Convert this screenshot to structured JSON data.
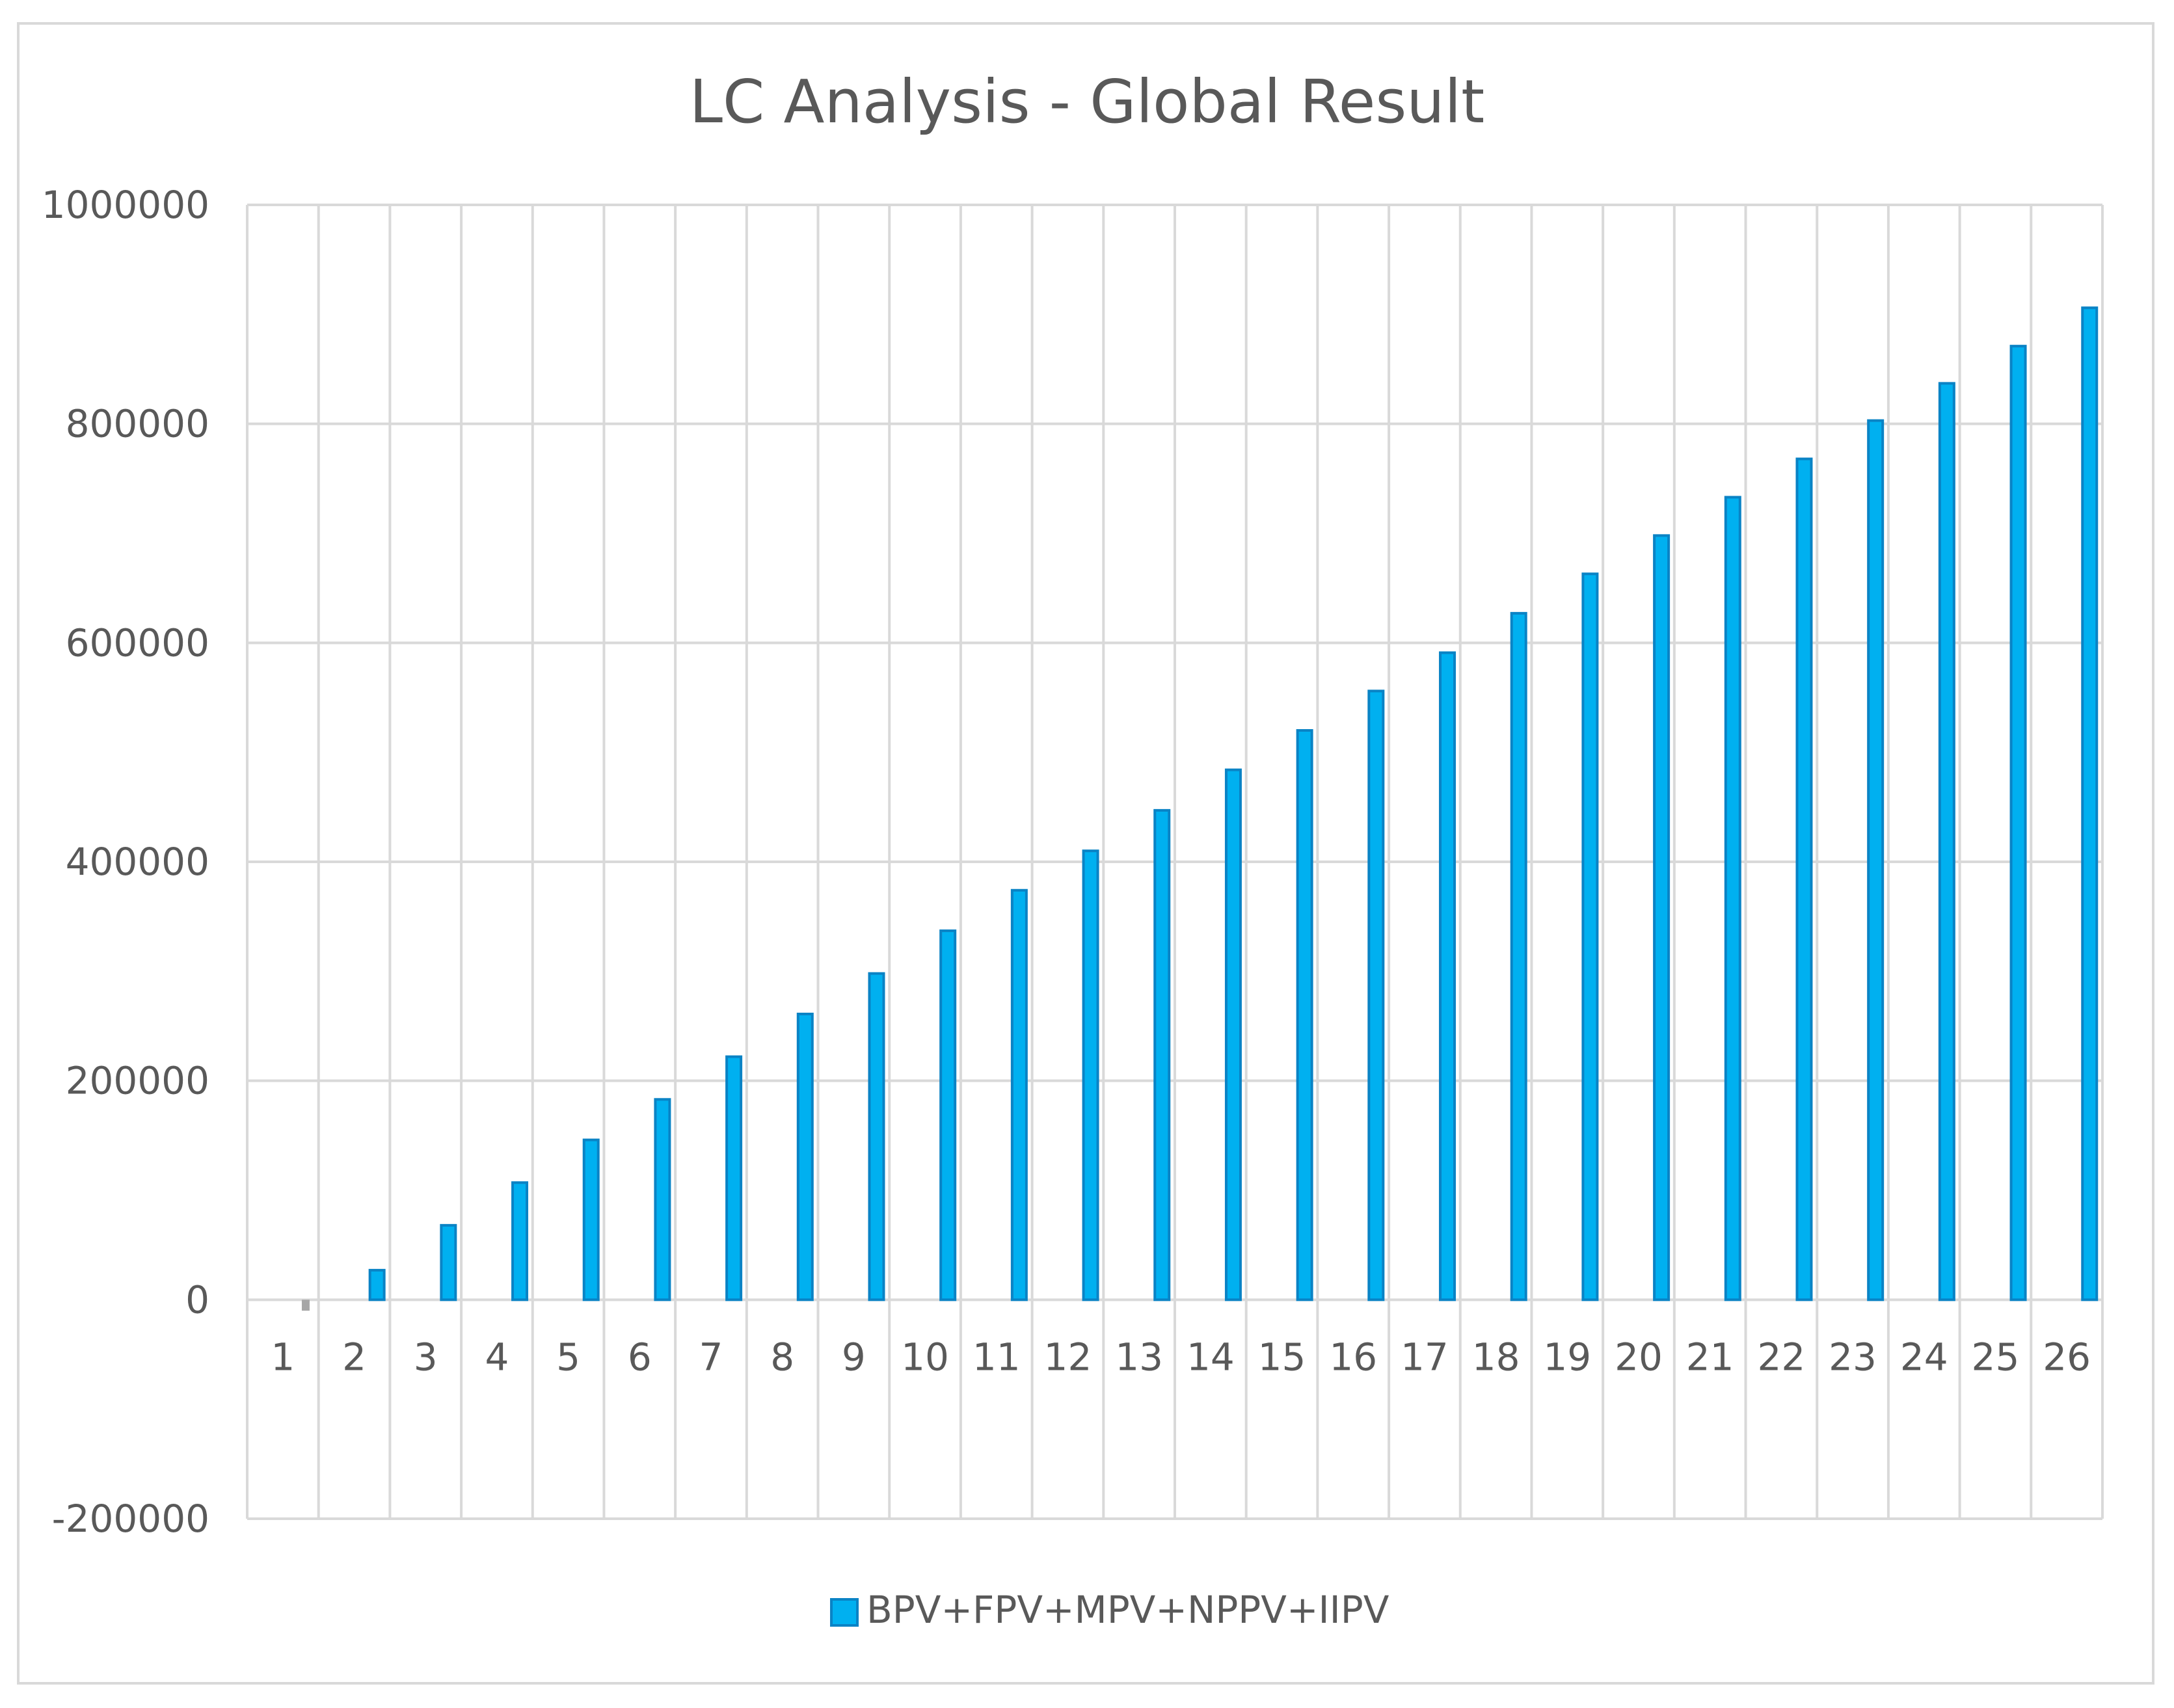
{
  "chart_data": {
    "type": "bar",
    "title": "LC Analysis - Global Result",
    "xlabel": "",
    "ylabel": "",
    "categories": [
      "1",
      "2",
      "3",
      "4",
      "5",
      "6",
      "7",
      "8",
      "9",
      "10",
      "11",
      "12",
      "13",
      "14",
      "15",
      "16",
      "17",
      "18",
      "19",
      "20",
      "21",
      "22",
      "23",
      "24",
      "25",
      "26"
    ],
    "series": [
      {
        "name": "BPV+FPV+MPV+NPPV+IIPV",
        "values": [
          -10000,
          27000,
          68000,
          107000,
          146000,
          183000,
          222000,
          261000,
          298000,
          337000,
          374000,
          410000,
          447000,
          484000,
          520000,
          556000,
          591000,
          627000,
          663000,
          698000,
          733000,
          768000,
          803000,
          837000,
          871000,
          906000
        ]
      }
    ],
    "ylim": [
      -200000,
      1000000
    ],
    "yticks": [
      "1000000",
      "800000",
      "600000",
      "400000",
      "200000",
      "0",
      "-200000"
    ],
    "grid": true,
    "legend_position": "bottom",
    "colors": {
      "series": "#00b0f0",
      "series_edge": "#0a83c5",
      "negative": "#a6a6a6",
      "grid": "#d9d9d9"
    }
  }
}
